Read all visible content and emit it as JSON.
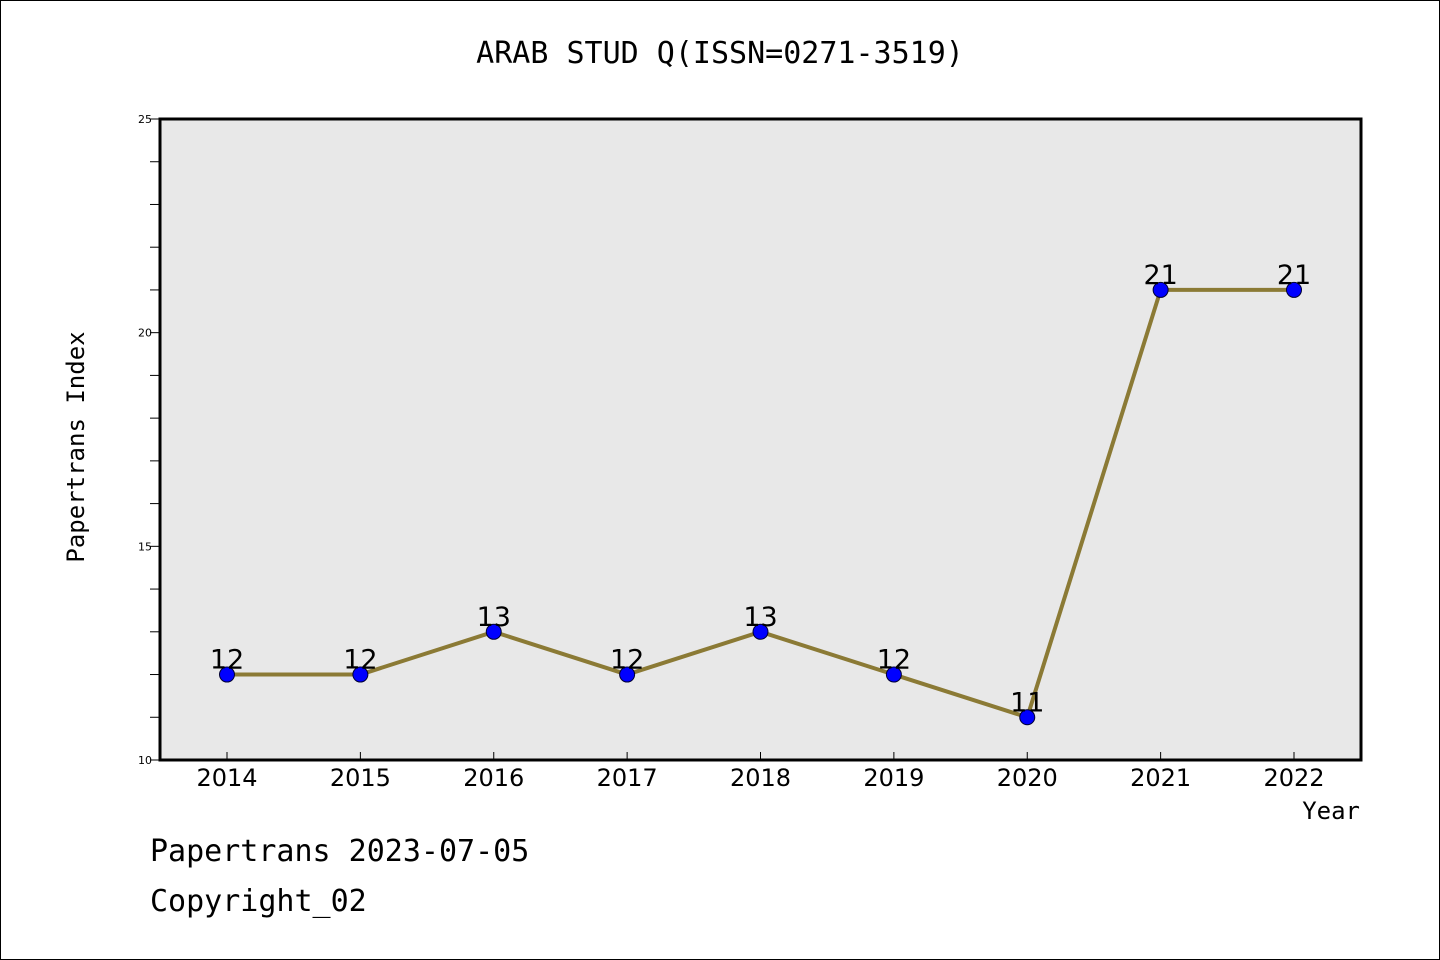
{
  "chart_data": {
    "type": "line",
    "title": "ARAB STUD Q(ISSN=0271-3519)",
    "xlabel": "Year",
    "ylabel": "Papertrans Index",
    "categories": [
      "2014",
      "2015",
      "2016",
      "2017",
      "2018",
      "2019",
      "2020",
      "2021",
      "2022"
    ],
    "series": [
      {
        "values": [
          12,
          12,
          13,
          12,
          13,
          12,
          11,
          21,
          21
        ]
      }
    ],
    "data_labels": [
      "12",
      "12",
      "13",
      "12",
      "13",
      "12",
      "11",
      "21",
      "21"
    ],
    "ylim": [
      10,
      25
    ],
    "yticks": [
      "10",
      "15",
      "20",
      "25"
    ],
    "grid": false,
    "legend": "none",
    "colors": {
      "line": "#8B7A35",
      "marker": "#0000FF",
      "plot_background": "#E8E8E8"
    }
  },
  "footer": {
    "date": "Papertrans 2023-07-05",
    "copyright": "Copyright_02"
  }
}
